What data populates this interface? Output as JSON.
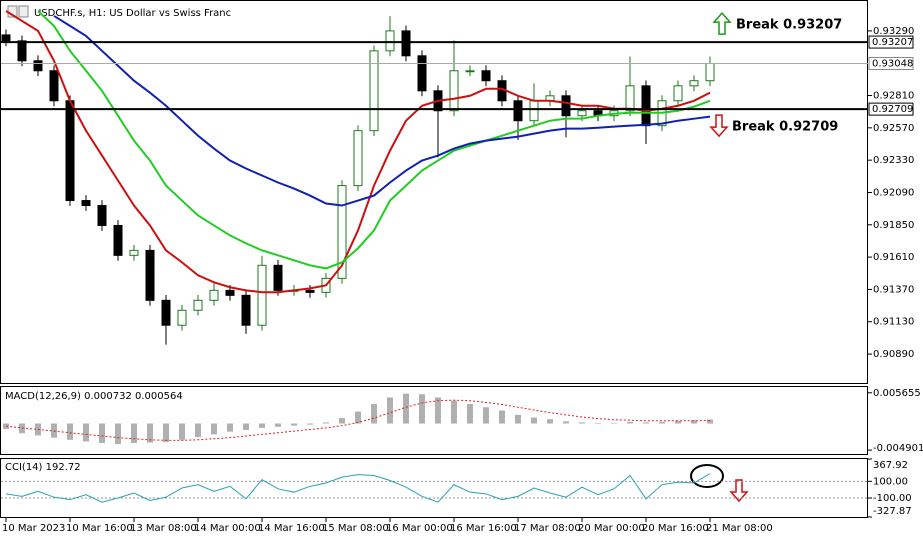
{
  "chart_data": [
    {
      "type": "candlestick",
      "title": "USDCHF.s, H1:  US Dollar vs Swiss Franc",
      "categories": [
        "10 Mar 2023",
        null,
        null,
        null,
        "10 Mar 16:00",
        null,
        null,
        null,
        "13 Mar 08:00",
        null,
        null,
        null,
        "14 Mar 00:00",
        null,
        null,
        null,
        "14 Mar 16:00",
        null,
        null,
        null,
        "15 Mar 08:00",
        null,
        null,
        null,
        "16 Mar 00:00",
        null,
        null,
        null,
        "16 Mar 16:00",
        null,
        null,
        null,
        "17 Mar 08:00",
        null,
        null,
        null,
        "20 Mar 00:00",
        null,
        null,
        null,
        "20 Mar 16:00",
        null,
        null,
        null,
        "21 Mar 08:00"
      ],
      "open": [
        0.9326,
        0.93216,
        0.93068,
        0.92994,
        0.92771,
        0.9203,
        0.91993,
        0.91845,
        0.91623,
        0.9166,
        0.91289,
        0.91104,
        0.91215,
        0.91289,
        0.91363,
        0.91326,
        0.91104,
        0.91549,
        0.91363,
        0.91363,
        0.91348,
        0.91452,
        0.92141,
        0.92549,
        0.93142,
        0.9329,
        0.93105,
        0.92845,
        0.92697,
        0.92994,
        0.92994,
        0.9292,
        0.92771,
        0.92623,
        0.92771,
        0.92808,
        0.9266,
        0.92697,
        0.9266,
        0.92697,
        0.92882,
        0.92586,
        0.92771,
        0.92882,
        0.9292
      ],
      "high": [
        0.933,
        0.93256,
        0.93108,
        0.93034,
        0.92811,
        0.9207,
        0.92033,
        0.91885,
        0.917,
        0.917,
        0.91329,
        0.91255,
        0.91329,
        0.9143,
        0.91403,
        0.91366,
        0.9162,
        0.91589,
        0.91403,
        0.91403,
        0.91492,
        0.92181,
        0.92589,
        0.93182,
        0.934,
        0.9333,
        0.93145,
        0.92885,
        0.9322,
        0.93034,
        0.93034,
        0.9296,
        0.92811,
        0.929,
        0.92848,
        0.92848,
        0.92737,
        0.92737,
        0.92737,
        0.931,
        0.92922,
        0.92811,
        0.92922,
        0.9296,
        0.931
      ],
      "low": [
        0.93176,
        0.93028,
        0.92954,
        0.92731,
        0.9199,
        0.91953,
        0.91805,
        0.91583,
        0.91583,
        0.91249,
        0.9096,
        0.91064,
        0.91175,
        0.91249,
        0.91286,
        0.9104,
        0.91064,
        0.91323,
        0.91323,
        0.91308,
        0.91308,
        0.91412,
        0.92101,
        0.92509,
        0.93102,
        0.93065,
        0.92805,
        0.9235,
        0.92657,
        0.92954,
        0.9288,
        0.92731,
        0.9248,
        0.92583,
        0.92731,
        0.925,
        0.9262,
        0.9262,
        0.9262,
        0.92657,
        0.9245,
        0.92546,
        0.92731,
        0.92842,
        0.9288
      ],
      "close": [
        0.93216,
        0.93068,
        0.92994,
        0.92771,
        0.9203,
        0.91993,
        0.91845,
        0.91623,
        0.9166,
        0.91289,
        0.91104,
        0.91215,
        0.91289,
        0.91363,
        0.91326,
        0.91104,
        0.91549,
        0.91363,
        0.91363,
        0.91348,
        0.91452,
        0.92141,
        0.92549,
        0.93142,
        0.9329,
        0.93105,
        0.92845,
        0.92697,
        0.92994,
        0.92994,
        0.9292,
        0.92771,
        0.92623,
        0.92771,
        0.92808,
        0.9266,
        0.92697,
        0.9266,
        0.92697,
        0.92882,
        0.92586,
        0.92771,
        0.92882,
        0.9292,
        0.93048
      ],
      "up_color": "#1f7a1f",
      "down_color": "#000000",
      "series": [
        {
          "color": "#cc1010",
          "values": [
            0.93438,
            0.93364,
            0.9329,
            0.93068,
            0.92771,
            0.92549,
            0.92364,
            0.92179,
            0.91993,
            0.91845,
            0.9166,
            0.91571,
            0.91475,
            0.91423,
            0.91386,
            0.91363,
            0.91349,
            0.91349,
            0.91363,
            0.91378,
            0.914,
            0.91549,
            0.91808,
            0.92141,
            0.92401,
            0.92623,
            0.92734,
            0.92771,
            0.92786,
            0.92808,
            0.9286,
            0.9286,
            0.92808,
            0.92771,
            0.92771,
            0.92756,
            0.92734,
            0.92734,
            0.92712,
            0.92712,
            0.92697,
            0.92712,
            0.92734,
            0.92771,
            0.92831
          ]
        },
        {
          "color": "#22cc22",
          "values": [
            null,
            null,
            0.93438,
            0.93327,
            0.93142,
            0.92994,
            0.92845,
            0.9266,
            0.92475,
            0.92327,
            0.92141,
            0.9203,
            0.91919,
            0.91845,
            0.91771,
            0.91712,
            0.9166,
            0.91623,
            0.91586,
            0.91549,
            0.91526,
            0.91571,
            0.91675,
            0.91808,
            0.9203,
            0.92141,
            0.92253,
            0.92327,
            0.92401,
            0.92438,
            0.92475,
            0.92512,
            0.92549,
            0.92586,
            0.92623,
            0.92638,
            0.92638,
            0.9266,
            0.92675,
            0.92682,
            0.92682,
            0.92682,
            0.92697,
            0.92727,
            0.92771
          ]
        },
        {
          "color": "#1020b0",
          "values": [
            null,
            null,
            null,
            0.93401,
            0.93327,
            0.93253,
            0.93142,
            0.93031,
            0.9292,
            0.92831,
            0.92734,
            0.92623,
            0.92512,
            0.92416,
            0.92327,
            0.92268,
            0.92216,
            0.92164,
            0.92119,
            0.92067,
            0.92008,
            0.91993,
            0.9203,
            0.92067,
            0.92164,
            0.92253,
            0.92327,
            0.92364,
            0.92416,
            0.92453,
            0.92475,
            0.9249,
            0.92505,
            0.92527,
            0.92549,
            0.92564,
            0.92564,
            0.92571,
            0.92579,
            0.92586,
            0.92593,
            0.92601,
            0.92623,
            0.92638,
            0.92653
          ]
        }
      ],
      "levels": [
        {
          "value": 0.93207,
          "label": "Break 0.93207"
        },
        {
          "value": 0.92709,
          "label": "Break 0.92709"
        }
      ],
      "current_price": 0.93048,
      "ylim": [
        0.90675,
        0.93512
      ],
      "yticks": [
        {
          "value": 0.9329,
          "label": "0.93290"
        },
        {
          "value": 0.9281,
          "label": "0.92810"
        },
        {
          "value": 0.9257,
          "label": "0.92570"
        },
        {
          "value": 0.9233,
          "label": "0.92330"
        },
        {
          "value": 0.9209,
          "label": "0.92090"
        },
        {
          "value": 0.9185,
          "label": "0.91850"
        },
        {
          "value": 0.9161,
          "label": "0.91610"
        },
        {
          "value": 0.9137,
          "label": "0.91370"
        },
        {
          "value": 0.9113,
          "label": "0.91130"
        },
        {
          "value": 0.9089,
          "label": "0.90890"
        }
      ]
    },
    {
      "type": "bar",
      "title": "MACD(12,26,9) 0.000732 0.000564",
      "color": "#b0b0b0",
      "values": [
        -0.001,
        -0.0018,
        -0.0022,
        -0.0026,
        -0.003,
        -0.0033,
        -0.0036,
        -0.0038,
        -0.0036,
        -0.0035,
        -0.0034,
        -0.003,
        -0.0025,
        -0.002,
        -0.0015,
        -0.0012,
        -0.0008,
        -0.0006,
        -0.0004,
        -0.0002,
        0.0002,
        0.001,
        0.0022,
        0.0036,
        0.0048,
        0.0055,
        0.0054,
        0.0048,
        0.0042,
        0.0036,
        0.003,
        0.0024,
        0.0016,
        0.0011,
        0.0008,
        0.0004,
        0.0002,
        0.0001,
        0.0001,
        0.0003,
        0.0002,
        0.0003,
        0.0005,
        0.0006,
        0.000732
      ],
      "signal": {
        "color": "#e02020",
        "values": [
          -0.0005,
          -0.0008,
          -0.0011,
          -0.0014,
          -0.0017,
          -0.002,
          -0.0023,
          -0.0026,
          -0.0028,
          -0.003,
          -0.0031,
          -0.0031,
          -0.003,
          -0.0028,
          -0.0026,
          -0.0023,
          -0.002,
          -0.0017,
          -0.0014,
          -0.0011,
          -0.0008,
          -0.0004,
          0.0002,
          0.001,
          0.002,
          0.003,
          0.0038,
          0.0042,
          0.0043,
          0.0042,
          0.0039,
          0.0035,
          0.003,
          0.0025,
          0.002,
          0.0016,
          0.0012,
          0.0009,
          0.0007,
          0.0006,
          0.0005,
          0.0005,
          0.0005,
          0.0005,
          0.000564
        ]
      },
      "ylim": [
        -0.005617,
        0.006728
      ],
      "yticks": [
        -0.004901,
        0.005655
      ]
    },
    {
      "type": "line",
      "title": "CCI(14) 192.72",
      "color": "#2aa0b8",
      "values": [
        -50,
        -80,
        -20,
        -90,
        -120,
        -60,
        -150,
        -100,
        -40,
        -130,
        -90,
        20,
        60,
        -20,
        40,
        -110,
        120,
        10,
        -30,
        40,
        80,
        150,
        180,
        170,
        110,
        30,
        -80,
        -150,
        60,
        -30,
        -50,
        -120,
        -80,
        20,
        -40,
        -90,
        30,
        -60,
        10,
        170,
        -110,
        60,
        90,
        80,
        192.72
      ],
      "ylim": [
        -327.87,
        367.92
      ],
      "yticks": [
        -327.87,
        {
          "value": -100,
          "label": "-100.00"
        },
        {
          "value": 100,
          "label": "100.00"
        },
        367.92
      ]
    }
  ]
}
